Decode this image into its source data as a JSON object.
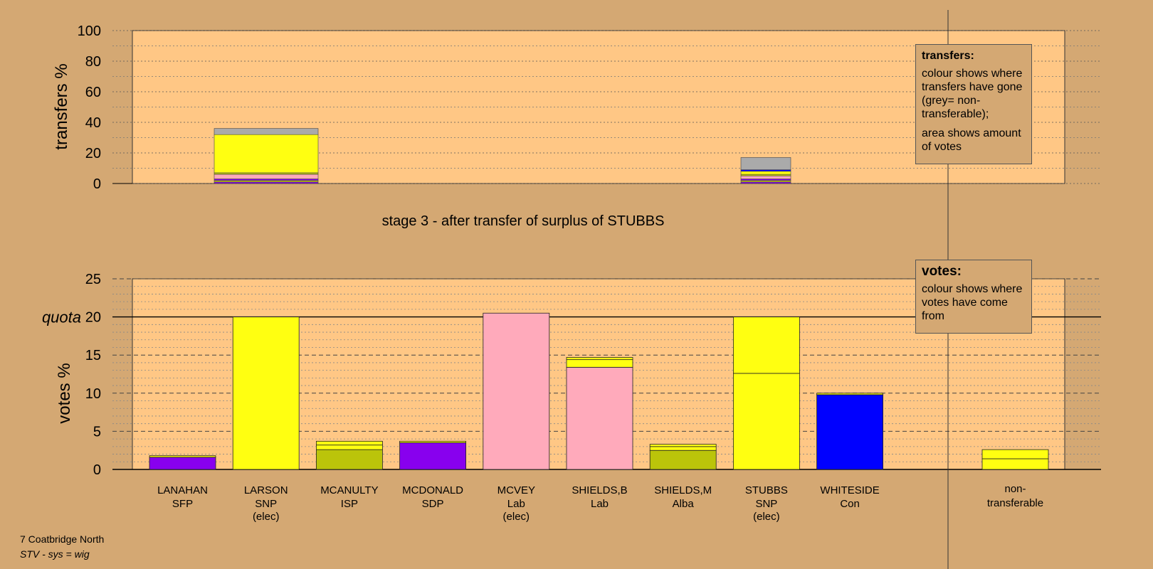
{
  "colors": {
    "background": "#d4a873",
    "plot_area": "#ffc785",
    "SFP": "#8800ee",
    "SNP": "#ffff11",
    "ISP": "#bbc40a",
    "SDP": "#8800ee",
    "Lab": "#ffaabb",
    "Alba": "#bbc40a",
    "Con": "#0000ff",
    "non_transferable": "#aaaaaa"
  },
  "stage_title": "stage 3 - after transfer of surplus of STUBBS",
  "legend_transfers": {
    "title": "transfers:",
    "line1": "colour shows where transfers have gone (grey= non-transferable);",
    "line2": "area shows amount of votes"
  },
  "legend_votes": {
    "title": "votes:",
    "line1": "colour shows where votes have come from"
  },
  "footer": {
    "line1": "7 Coatbridge North",
    "line2": "STV - sys = wig"
  },
  "chart_data": [
    {
      "type": "bar",
      "stacked": true,
      "ylabel": "transfers %",
      "ylim": [
        0,
        100
      ],
      "yticks": [
        0,
        20,
        40,
        60,
        80,
        100
      ],
      "grid": true,
      "bars": [
        {
          "from": "LARSON",
          "segments": [
            {
              "to": "SFP",
              "value": 1
            },
            {
              "to": "ISP",
              "value": 1
            },
            {
              "to": "SDP",
              "value": 1
            },
            {
              "to": "Lab",
              "value": 3
            },
            {
              "to": "Alba",
              "value": 1
            },
            {
              "to": "SNP",
              "value": 25
            },
            {
              "to": "non-transferable",
              "value": 4
            }
          ]
        },
        {
          "from": "STUBBS",
          "segments": [
            {
              "to": "SFP",
              "value": 1
            },
            {
              "to": "ISP",
              "value": 1
            },
            {
              "to": "SDP",
              "value": 1
            },
            {
              "to": "Lab",
              "value": 2
            },
            {
              "to": "Alba",
              "value": 1
            },
            {
              "to": "SNP",
              "value": 2
            },
            {
              "to": "Con",
              "value": 1
            },
            {
              "to": "non-transferable",
              "value": 8
            }
          ]
        }
      ]
    },
    {
      "type": "bar",
      "stacked": true,
      "ylabel": "votes %",
      "ylim": [
        0,
        25
      ],
      "yticks": [
        0,
        5,
        10,
        15,
        20,
        25
      ],
      "quota": 20,
      "quota_label": "quota",
      "grid": true,
      "categories": [
        {
          "name": "LANAHAN",
          "party": "SFP",
          "elec": "",
          "segments": [
            {
              "from": "SFP",
              "value": 1.6
            },
            {
              "from": "SNP",
              "value": 0.2
            }
          ]
        },
        {
          "name": "LARSON",
          "party": "SNP",
          "elec": "(elec)",
          "segments": [
            {
              "from": "SNP",
              "value": 20.0
            }
          ]
        },
        {
          "name": "MCANULTY",
          "party": "ISP",
          "elec": "",
          "segments": [
            {
              "from": "ISP",
              "value": 2.6
            },
            {
              "from": "SNP",
              "value": 0.6
            },
            {
              "from": "SNP",
              "value": 0.5
            }
          ]
        },
        {
          "name": "MCDONALD",
          "party": "SDP",
          "elec": "",
          "segments": [
            {
              "from": "SDP",
              "value": 3.5
            },
            {
              "from": "SNP",
              "value": 0.2
            }
          ]
        },
        {
          "name": "MCVEY",
          "party": "Lab",
          "elec": "(elec)",
          "segments": [
            {
              "from": "Lab",
              "value": 20.5
            }
          ]
        },
        {
          "name": "SHIELDS,B",
          "party": "Lab",
          "elec": "",
          "segments": [
            {
              "from": "Lab",
              "value": 13.4
            },
            {
              "from": "SNP",
              "value": 1.0
            },
            {
              "from": "SNP",
              "value": 0.3
            }
          ]
        },
        {
          "name": "SHIELDS,M",
          "party": "Alba",
          "elec": "",
          "segments": [
            {
              "from": "Alba",
              "value": 2.5
            },
            {
              "from": "SNP",
              "value": 0.5
            },
            {
              "from": "SNP",
              "value": 0.3
            }
          ]
        },
        {
          "name": "STUBBS",
          "party": "SNP",
          "elec": "(elec)",
          "segments": [
            {
              "from": "SNP",
              "value": 12.6
            },
            {
              "from": "SNP",
              "value": 7.4
            }
          ]
        },
        {
          "name": "WHITESIDE",
          "party": "Con",
          "elec": "",
          "segments": [
            {
              "from": "Con",
              "value": 9.8
            },
            {
              "from": "SNP",
              "value": 0.2
            }
          ]
        }
      ],
      "non_transferable": {
        "label_line1": "non-",
        "label_line2": "transferable",
        "segments": [
          {
            "from": "SNP",
            "value": 1.4
          },
          {
            "from": "SNP",
            "value": 1.2
          }
        ]
      }
    }
  ]
}
